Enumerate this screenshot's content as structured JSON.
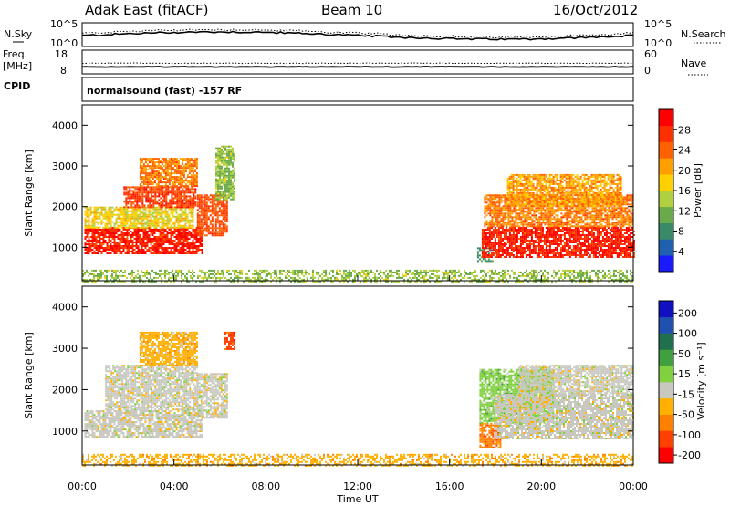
{
  "header": {
    "title": "Adak East (fitACF)",
    "beam": "Beam 10",
    "date": "16/Oct/2012"
  },
  "noise_panel": {
    "left_label": "N.Sky",
    "left_ticks": [
      "10^5",
      "10^0"
    ],
    "right_label": "N.Search",
    "right_ticks": [
      "10^5",
      "10^0"
    ]
  },
  "freq_panel": {
    "left_label_line1": "Freq.",
    "left_label_line2": "[MHz]",
    "left_ticks": [
      "18",
      "8"
    ],
    "right_label": "Nave",
    "right_ticks": [
      "60",
      "0"
    ]
  },
  "cpid": {
    "label": "CPID",
    "text": "normalsound (fast) -157 RF"
  },
  "axes": {
    "ylabel": "Slant Range [km]",
    "xlabel": "Time UT",
    "y_ticks": [
      "1000",
      "2000",
      "3000",
      "4000"
    ],
    "x_ticks": [
      "00:00",
      "04:00",
      "08:00",
      "12:00",
      "16:00",
      "20:00",
      "00:00"
    ]
  },
  "power_colorbar": {
    "label": "Power [dB]",
    "ticks": [
      "4",
      "8",
      "12",
      "16",
      "20",
      "24",
      "28"
    ],
    "colors": [
      "#1a1aff",
      "#2060b0",
      "#3a8a6a",
      "#6aaa4a",
      "#b0d040",
      "#ffd000",
      "#ffa000",
      "#ff6000",
      "#ff3000",
      "#ff0000"
    ]
  },
  "velocity_colorbar": {
    "label": "Velocity [m s⁻¹]",
    "ticks": [
      "200",
      "100",
      "50",
      "15",
      "-15",
      "-50",
      "-100",
      "-200"
    ],
    "colors": [
      "#1010c0",
      "#2050b0",
      "#207050",
      "#40a040",
      "#80d040",
      "#c8c8c0",
      "#ffb000",
      "#ff8000",
      "#ff4000",
      "#ff0000"
    ]
  },
  "chart_data": {
    "type": "heatmap",
    "x_range_hours": [
      0,
      24
    ],
    "y_range_km": [
      180,
      4500
    ],
    "panels": [
      {
        "name": "Power",
        "regions": [
          {
            "t": [
              0.1,
              5.2
            ],
            "r": [
              850,
              1500
            ],
            "level": 28
          },
          {
            "t": [
              0.1,
              4.8
            ],
            "r": [
              1500,
              2000
            ],
            "level": 16
          },
          {
            "t": [
              1.8,
              4.9
            ],
            "r": [
              2000,
              2500
            ],
            "level": 26
          },
          {
            "t": [
              2.5,
              5.0
            ],
            "r": [
              2500,
              3200
            ],
            "level": 22
          },
          {
            "t": [
              5.0,
              6.3
            ],
            "r": [
              1300,
              2300
            ],
            "level": 25
          },
          {
            "t": [
              5.8,
              6.6
            ],
            "r": [
              2200,
              3500
            ],
            "level": 12
          },
          {
            "t": [
              17.2,
              17.9
            ],
            "r": [
              650,
              1000
            ],
            "level": 8
          },
          {
            "t": [
              17.4,
              24.0
            ],
            "r": [
              750,
              1500
            ],
            "level": 28
          },
          {
            "t": [
              17.5,
              24.0
            ],
            "r": [
              1500,
              2300
            ],
            "level": 22
          },
          {
            "t": [
              18.5,
              23.5
            ],
            "r": [
              2000,
              2800
            ],
            "level": 20
          },
          {
            "t": [
              0.0,
              24.0
            ],
            "r": [
              180,
              450
            ],
            "level": 12
          }
        ]
      },
      {
        "name": "Velocity",
        "regions": [
          {
            "t": [
              0.1,
              5.2
            ],
            "r": [
              850,
              1500
            ],
            "v": 0
          },
          {
            "t": [
              1.0,
              5.0
            ],
            "r": [
              1500,
              2600
            ],
            "v": 0
          },
          {
            "t": [
              2.5,
              5.0
            ],
            "r": [
              2600,
              3400
            ],
            "v": -40
          },
          {
            "t": [
              5.0,
              6.3
            ],
            "r": [
              1300,
              2400
            ],
            "v": 0
          },
          {
            "t": [
              6.2,
              6.6
            ],
            "r": [
              3000,
              3400
            ],
            "v": -150
          },
          {
            "t": [
              17.3,
              18.2
            ],
            "r": [
              600,
              1200
            ],
            "v": -60
          },
          {
            "t": [
              17.3,
              20.5
            ],
            "r": [
              1200,
              2500
            ],
            "v": 25
          },
          {
            "t": [
              18.0,
              24.0
            ],
            "r": [
              800,
              1900
            ],
            "v": 0
          },
          {
            "t": [
              19.0,
              24.0
            ],
            "r": [
              1900,
              2600
            ],
            "v": 0
          },
          {
            "t": [
              0.0,
              24.0
            ],
            "r": [
              180,
              450
            ],
            "v": -30
          }
        ]
      }
    ]
  }
}
